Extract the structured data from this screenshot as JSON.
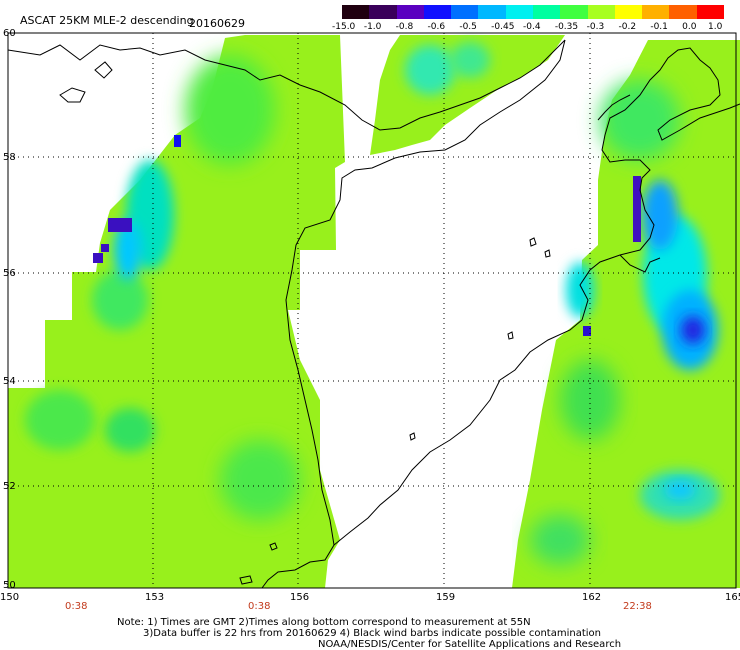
{
  "header": {
    "title": "ASCAT 25KM MLE-2 descending",
    "date": "20160629"
  },
  "colorbar": {
    "labels": [
      "-15.0",
      "-1.0",
      "-0.8",
      "-0.6",
      "-0.5",
      "-0.45",
      "-0.4",
      "-0.35",
      "-0.3",
      "-0.2",
      "-0.1",
      "0.0",
      "1.0"
    ],
    "colors": [
      "#200010",
      "#3a005a",
      "#5a00c0",
      "#1010ff",
      "#0070ff",
      "#00b8ff",
      "#00f0f0",
      "#00ffa0",
      "#40ff40",
      "#a8ff20",
      "#ffff00",
      "#ffb000",
      "#ff6000",
      "#ff0000"
    ]
  },
  "axes": {
    "lat_labels": [
      "60",
      "58",
      "56",
      "54",
      "52",
      "50"
    ],
    "lon_labels": [
      "150",
      "153",
      "156",
      "159",
      "162",
      "165"
    ],
    "pass_times": [
      "0:38",
      "0:38",
      "22:38"
    ]
  },
  "notes": {
    "line1": "Note: 1) Times are GMT 2)Times along bottom correspond to measurement at 55N",
    "line2": "3)Data buffer is 22 hrs from 20160629 4) Black wind barbs indicate possible contamination",
    "line3": "NOAA/NESDIS/Center for Satellite Applications and Research"
  }
}
